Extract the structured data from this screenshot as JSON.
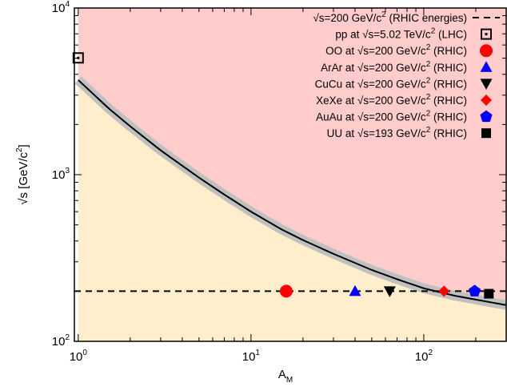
{
  "chart_data": {
    "type": "scatter",
    "title": "",
    "xlabel": {
      "main": "A",
      "sub": "M"
    },
    "ylabel": {
      "prefix": "√s [GeV/c",
      "sup": "2",
      "suffix": "]"
    },
    "x_scale": "log",
    "y_scale": "log",
    "xlim": [
      0.95,
      300
    ],
    "ylim": [
      100,
      10000
    ],
    "grid": false,
    "legend_position": "top-right",
    "x_ticks": [
      {
        "value": 1,
        "label": "10",
        "exp": "0"
      },
      {
        "value": 10,
        "label": "10",
        "exp": "1"
      },
      {
        "value": 100,
        "label": "10",
        "exp": "2"
      }
    ],
    "y_ticks": [
      {
        "value": 100,
        "label": "10",
        "exp": "2"
      },
      {
        "value": 1000,
        "label": "10",
        "exp": "3"
      },
      {
        "value": 10000,
        "label": "10",
        "exp": "4"
      }
    ],
    "regions": [
      {
        "name": "above boundary",
        "color": "#ffcccc"
      },
      {
        "name": "below boundary",
        "color": "#ffeecc"
      }
    ],
    "boundary_curve": {
      "color": "#000000",
      "band_color": "#c0c0c0",
      "x": [
        1,
        1.5,
        2,
        3,
        5,
        7,
        10,
        15,
        20,
        30,
        50,
        70,
        100,
        150,
        200,
        300
      ],
      "y": [
        3700,
        2500,
        1950,
        1400,
        960,
        760,
        600,
        470,
        405,
        335,
        268,
        236,
        208,
        188,
        178,
        165
      ]
    },
    "reference_line": {
      "label_pre": "√s=200 GeV/c",
      "label_sup": "2",
      "label_post": " (RHIC energies)",
      "value": 200,
      "color": "#000000",
      "style": "dashed"
    },
    "series": [
      {
        "name_pre": "pp at √s=5.02 TeV/c",
        "name_sup": "2",
        "name_post": " (LHC)",
        "x": 1,
        "y": 5020,
        "marker": "open-square-dot",
        "color": "#000000"
      },
      {
        "name_pre": "OO at √s=200 GeV/c",
        "name_sup": "2",
        "name_post": " (RHIC)",
        "x": 16,
        "y": 200,
        "marker": "circle",
        "color": "#ff0000"
      },
      {
        "name_pre": "ArAr at √s=200 GeV/c",
        "name_sup": "2",
        "name_post": " (RHIC)",
        "x": 40,
        "y": 200,
        "marker": "triangle-up",
        "color": "#0000ff"
      },
      {
        "name_pre": "CuCu at √s=200 GeV/c",
        "name_sup": "2",
        "name_post": " (RHIC)",
        "x": 63.5,
        "y": 200,
        "marker": "triangle-down",
        "color": "#000000"
      },
      {
        "name_pre": "XeXe at √s=200 GeV/c",
        "name_sup": "2",
        "name_post": " (RHIC)",
        "x": 131,
        "y": 200,
        "marker": "diamond",
        "color": "#ff0000"
      },
      {
        "name_pre": "AuAu at √s=200 GeV/c",
        "name_sup": "2",
        "name_post": " (RHIC)",
        "x": 197,
        "y": 200,
        "marker": "pentagon",
        "color": "#0000ff"
      },
      {
        "name_pre": "UU at √s=193 GeV/c",
        "name_sup": "2",
        "name_post": " (RHIC)",
        "x": 238,
        "y": 193,
        "marker": "square",
        "color": "#000000"
      }
    ]
  }
}
